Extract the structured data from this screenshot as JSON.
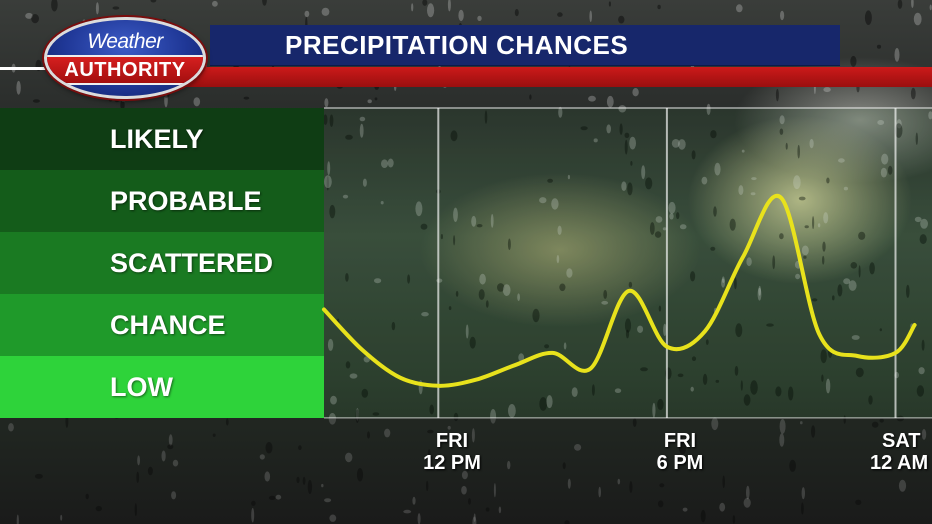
{
  "header": {
    "title": "PRECIPITATION CHANCES"
  },
  "logo": {
    "line1": "Weather",
    "line2": "AUTHORITY"
  },
  "colors": {
    "likely": "#0f3d14",
    "probable": "#145c1a",
    "scattered": "#1a7a22",
    "chance": "#1f9a2a",
    "low": "#2ed33a",
    "curve": "#e8e21c"
  },
  "chart_data": {
    "type": "line",
    "y_categories": [
      "LIKELY",
      "PROBABLE",
      "SCATTERED",
      "CHANCE",
      "LOW"
    ],
    "x_tick_labels": [
      {
        "day": "FRI",
        "time": "12 PM"
      },
      {
        "day": "FRI",
        "time": "6 PM"
      },
      {
        "day": "SAT",
        "time": "12 AM"
      }
    ],
    "series": [
      {
        "points": [
          [
            "FRI 9 AM",
            1.75
          ],
          [
            "FRI 10 AM",
            1.1
          ],
          [
            "FRI 11 AM",
            0.65
          ],
          [
            "FRI 12 PM",
            0.52
          ],
          [
            "FRI 1 PM",
            0.62
          ],
          [
            "FRI 2 PM",
            0.85
          ],
          [
            "FRI 3 PM",
            1.05
          ],
          [
            "FRI 4 PM",
            0.8
          ],
          [
            "FRI 5 PM",
            2.05
          ],
          [
            "FRI 6 PM",
            1.15
          ],
          [
            "FRI 7 PM",
            1.4
          ],
          [
            "FRI 8 PM",
            2.6
          ],
          [
            "FRI 9 PM",
            3.55
          ],
          [
            "FRI 10 PM",
            1.35
          ],
          [
            "FRI 11 PM",
            1.0
          ],
          [
            "SAT 12 AM",
            1.05
          ],
          [
            "SAT 12:30 AM",
            1.5
          ]
        ]
      }
    ],
    "grid": true,
    "vertical_gridlines_at": [
      "FRI 12 PM",
      "FRI 6 PM",
      "SAT 12 AM"
    ]
  }
}
